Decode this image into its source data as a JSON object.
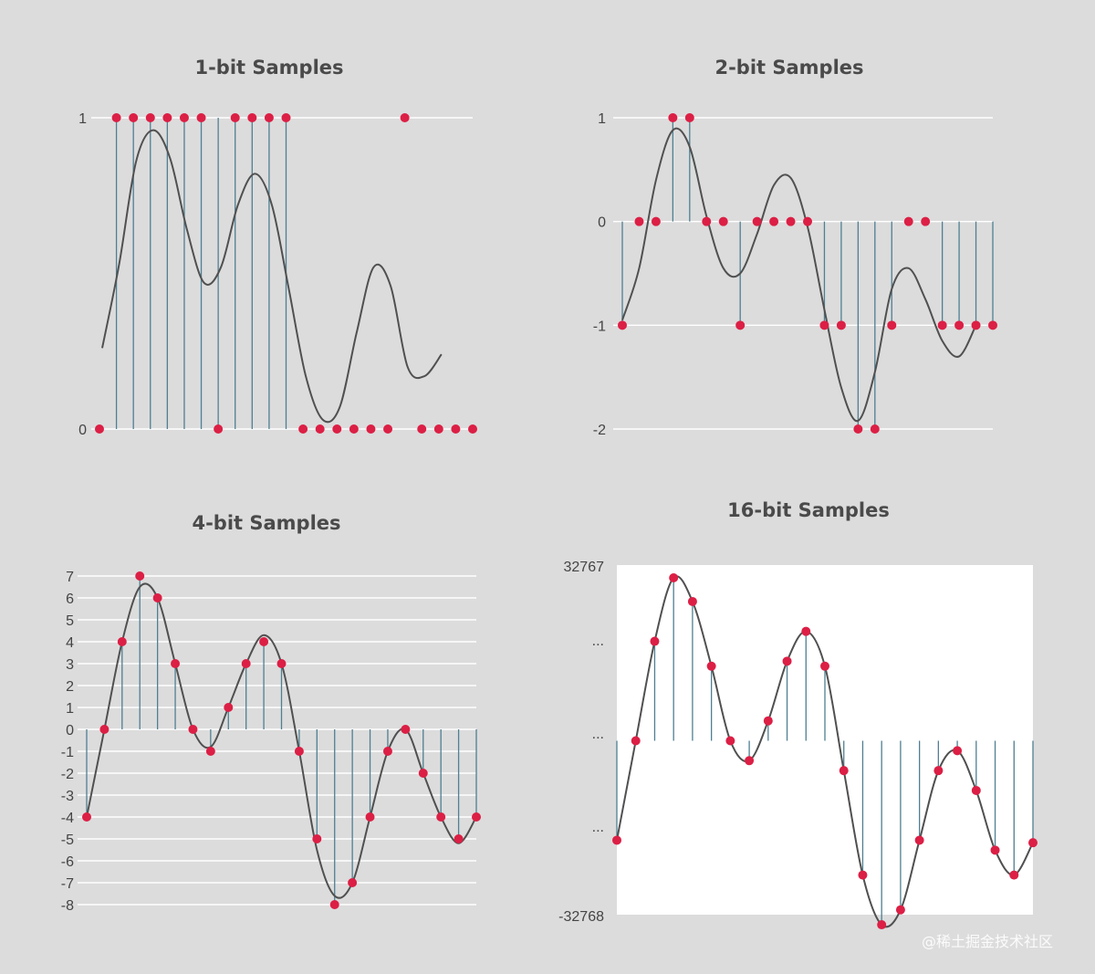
{
  "chart_data": [
    {
      "type": "scatter",
      "title": "1-bit Samples",
      "yticks": [
        "0",
        "1"
      ],
      "ytick_values": [
        0,
        1
      ],
      "ylim": [
        0,
        1
      ],
      "x": [
        0,
        1,
        2,
        3,
        4,
        5,
        6,
        7,
        8,
        9,
        10,
        11,
        12,
        13,
        14,
        15,
        16,
        17,
        18,
        19,
        20,
        21,
        22
      ],
      "samples": [
        0,
        1,
        1,
        1,
        1,
        1,
        1,
        0,
        1,
        1,
        1,
        1,
        0,
        0,
        0,
        0,
        0,
        0,
        1,
        0,
        0,
        0,
        0
      ],
      "curve": [
        0.26,
        0.53,
        0.86,
        0.96,
        0.87,
        0.64,
        0.47,
        0.52,
        0.72,
        0.82,
        0.72,
        0.45,
        0.17,
        0.03,
        0.07,
        0.31,
        0.52,
        0.46,
        0.2,
        0.17,
        0.24
      ],
      "curve_x": [
        0,
        1,
        2,
        3,
        4,
        5,
        6,
        7,
        8,
        9,
        10,
        11,
        12,
        13,
        14,
        15,
        16,
        17,
        18,
        19,
        20
      ],
      "grid": true
    },
    {
      "type": "scatter",
      "title": "2-bit Samples",
      "yticks": [
        "1",
        "0",
        "-1",
        "-2"
      ],
      "ytick_values": [
        1,
        0,
        -1,
        -2
      ],
      "ylim": [
        -2,
        1
      ],
      "x": [
        0,
        1,
        2,
        3,
        4,
        5,
        6,
        7,
        8,
        9,
        10,
        11,
        12,
        13,
        14,
        15,
        16,
        17,
        18,
        19,
        20,
        21,
        22
      ],
      "samples": [
        -1,
        0,
        0,
        1,
        1,
        0,
        0,
        -1,
        0,
        0,
        0,
        0,
        -1,
        -1,
        -2,
        -2,
        -1,
        0,
        0,
        -1,
        -1,
        -1,
        -1
      ],
      "curve": [
        -0.95,
        -0.45,
        0.4,
        0.88,
        0.72,
        0.05,
        -0.45,
        -0.5,
        -0.12,
        0.35,
        0.42,
        -0.05,
        -0.85,
        -1.6,
        -1.92,
        -1.45,
        -0.65,
        -0.45,
        -0.75,
        -1.15,
        -1.3,
        -1.0
      ],
      "curve_x": [
        0,
        1,
        2,
        3,
        4,
        5,
        6,
        7,
        8,
        9,
        10,
        11,
        12,
        13,
        14,
        15,
        16,
        17,
        18,
        19,
        20,
        21
      ],
      "grid": true
    },
    {
      "type": "scatter",
      "title": "4-bit Samples",
      "yticks": [
        "7",
        "6",
        "5",
        "4",
        "3",
        "2",
        "1",
        "0",
        "-1",
        "-2",
        "-3",
        "-4",
        "-5",
        "-6",
        "-7",
        "-8"
      ],
      "ytick_values": [
        7,
        6,
        5,
        4,
        3,
        2,
        1,
        0,
        -1,
        -2,
        -3,
        -4,
        -5,
        -6,
        -7,
        -8
      ],
      "ylim": [
        -8,
        7
      ],
      "x": [
        0,
        1,
        2,
        3,
        4,
        5,
        6,
        7,
        8,
        9,
        10,
        11,
        12,
        13,
        14,
        15,
        16,
        17,
        18,
        19,
        20,
        21,
        22
      ],
      "samples": [
        -4,
        0,
        4,
        7,
        6,
        3,
        0,
        -1,
        1,
        3,
        4,
        3,
        -1,
        -5,
        -8,
        -7,
        -4,
        -1,
        0,
        -2,
        -4,
        -5,
        -4
      ],
      "curve": [
        -4,
        0,
        4,
        6.5,
        6,
        3,
        0,
        -0.8,
        1,
        3,
        4.3,
        3,
        -1,
        -5.5,
        -7.6,
        -7,
        -4,
        -1,
        0,
        -2,
        -4,
        -5.2,
        -4
      ],
      "curve_x": [
        0,
        1,
        2,
        3,
        4,
        5,
        6,
        7,
        8,
        9,
        10,
        11,
        12,
        13,
        14,
        15,
        16,
        17,
        18,
        19,
        20,
        21,
        22
      ],
      "grid": true
    },
    {
      "type": "scatter",
      "title": "16-bit Samples",
      "yticks": [
        "32767",
        "...",
        "...",
        "...",
        "-32768"
      ],
      "ytick_values": [
        32767,
        20000,
        0,
        -20000,
        -32768
      ],
      "ylim": [
        -32768,
        32767
      ],
      "x": [
        0,
        1,
        2,
        3,
        4,
        5,
        6,
        7,
        8,
        9,
        10,
        11,
        12,
        13,
        14,
        15,
        16,
        17,
        18,
        19,
        20,
        21,
        22
      ],
      "samples": [
        -20000,
        0,
        20000,
        32767,
        28000,
        15000,
        0,
        -4000,
        4000,
        16000,
        22000,
        15000,
        -6000,
        -27000,
        -37000,
        -34000,
        -20000,
        -6000,
        -2000,
        -10000,
        -22000,
        -27000,
        -20500
      ],
      "curve": [
        -20000,
        0,
        20000,
        32767,
        28000,
        15000,
        0,
        -4000,
        4000,
        16000,
        22000,
        15000,
        -6000,
        -27000,
        -37000,
        -34000,
        -20000,
        -6000,
        -2000,
        -10000,
        -22000,
        -27000,
        -20500
      ],
      "curve_x": [
        0,
        1,
        2,
        3,
        4,
        5,
        6,
        7,
        8,
        9,
        10,
        11,
        12,
        13,
        14,
        15,
        16,
        17,
        18,
        19,
        20,
        21,
        22
      ],
      "grid": false
    }
  ],
  "watermark": "@稀土掘金技术社区"
}
